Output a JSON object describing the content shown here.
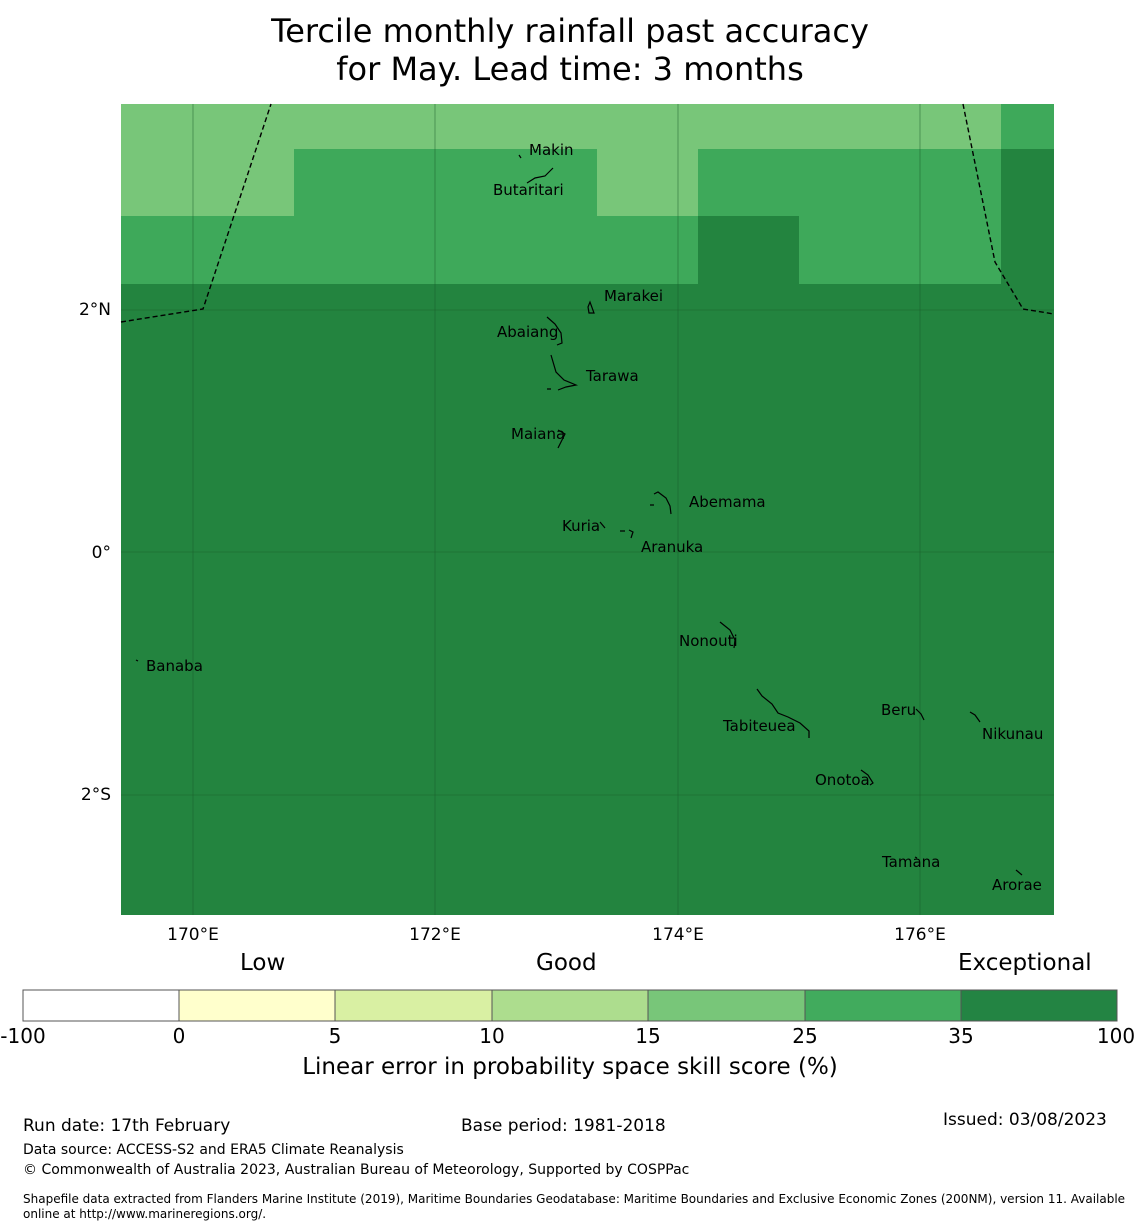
{
  "title": {
    "line1": "Tercile monthly rainfall past accuracy",
    "line2": "for May. Lead time: 3 months"
  },
  "map": {
    "lat_labels": [
      "2°N",
      "0°",
      "2°S"
    ],
    "lon_labels": [
      "170°E",
      "172°E",
      "174°E",
      "176°E"
    ],
    "islands": [
      "Makin",
      "Butaritari",
      "Marakei",
      "Abaiang",
      "Tarawa",
      "Maiana",
      "Abemama",
      "Kuria",
      "Aranuka",
      "Banaba",
      "Nonouti",
      "Beru",
      "Tabiteuea",
      "Nikunau",
      "Onotoa",
      "Tamana",
      "Arorae"
    ],
    "colors": {
      "exceptional": "#23843f",
      "high": "#3ea95a",
      "mid": "#78c679"
    }
  },
  "colorbar": {
    "category_labels": [
      "Low",
      "Good",
      "Exceptional"
    ],
    "ticks": [
      "-100",
      "0",
      "5",
      "10",
      "15",
      "25",
      "35",
      "100"
    ],
    "colors": [
      "#ffffff",
      "#ffffcc",
      "#d9f0a3",
      "#addd8e",
      "#78c679",
      "#41ab5d",
      "#238443"
    ],
    "title": "Linear error in probability space skill score (%)"
  },
  "footer": {
    "run_date": "Run date: 17th February",
    "base_period": "Base period: 1981-2018",
    "issued": "Issued: 03/08/2023",
    "data_source": "Data source: ACCESS-S2 and ERA5 Climate Reanalysis",
    "copyright": "© Commonwealth of Australia 2023, Australian Bureau of Meteorology, Supported by COSPPac",
    "shapefile": "Shapefile data extracted from Flanders Marine Institute (2019), Maritime Boundaries Geodatabase: Maritime Boundaries and Exclusive Economic Zones (200NM), version 11. Available online at http://www.marineregions.org/."
  }
}
